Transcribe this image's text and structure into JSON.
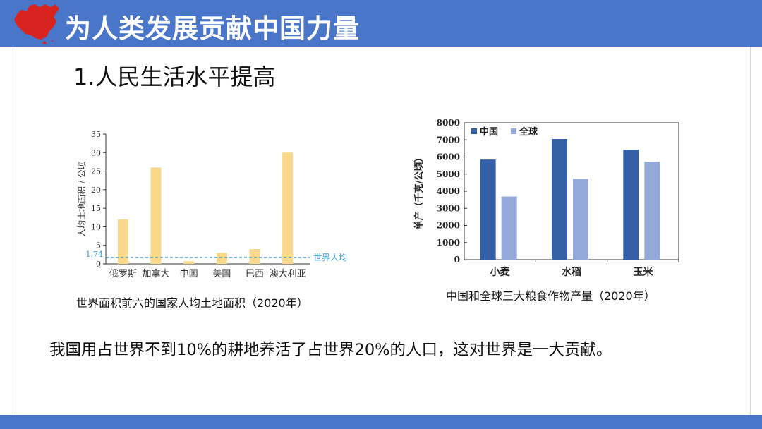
{
  "header": {
    "title": "为人类发展贡献中国力量",
    "map_color": "#d8231f",
    "bar_color": "#4a76c9"
  },
  "section_title": "1.人民生活水平提高",
  "charts": {
    "land": {
      "caption": "世界面积前六的国家人均土地面积（2020年）"
    },
    "grain": {
      "caption": "中国和全球三大粮食作物产量（2020年）"
    }
  },
  "chart_data": [
    {
      "type": "bar",
      "title": "",
      "categories": [
        "俄罗斯",
        "加拿大",
        "中国",
        "美国",
        "巴西",
        "澳大利亚"
      ],
      "values": [
        12,
        26,
        0.7,
        3,
        4,
        30
      ],
      "ylabel": "人均土地面积 / 公顷",
      "ylim": [
        0,
        35
      ],
      "yticks": [
        0,
        5,
        10,
        15,
        20,
        25,
        30,
        35
      ],
      "bar_color": "#f8d98b",
      "reference_line": {
        "value": 1.74,
        "value_label": "1.74",
        "label": "世界人均",
        "color": "#3aa0d8"
      }
    },
    {
      "type": "bar",
      "title": "",
      "categories": [
        "小麦",
        "水稻",
        "玉米"
      ],
      "series": [
        {
          "name": "中国",
          "values": [
            5850,
            7050,
            6430
          ],
          "color": "#3560a8"
        },
        {
          "name": "全球",
          "values": [
            3690,
            4720,
            5720
          ],
          "color": "#93a9d8"
        }
      ],
      "ylabel": "单产（千克/公顷）",
      "ylim": [
        0,
        8000
      ],
      "yticks": [
        0,
        1000,
        2000,
        3000,
        4000,
        5000,
        6000,
        7000,
        8000
      ],
      "legend": "top-left"
    }
  ],
  "body_text": "我国用占世界不到10%的耕地养活了占世界20%的人口，这对世界是一大贡献。"
}
